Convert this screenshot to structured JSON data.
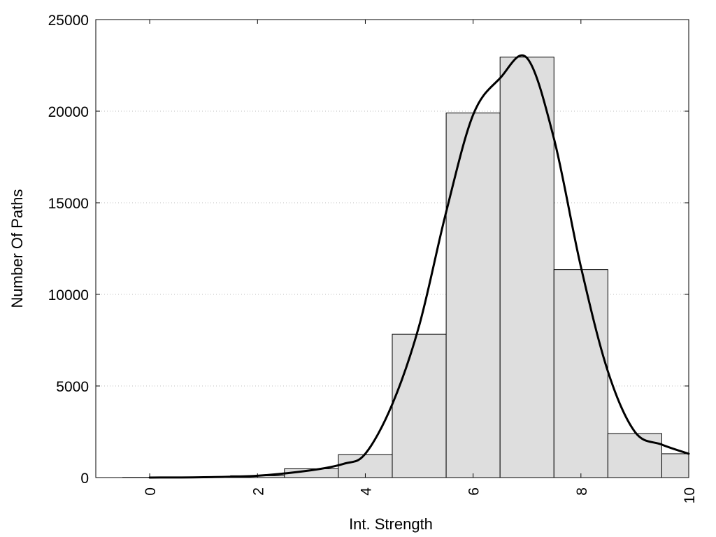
{
  "chart_data": {
    "type": "bar",
    "title": "",
    "xlabel": "Int. Strength",
    "ylabel": "Number Of Paths",
    "xlim": [
      -1,
      10
    ],
    "ylim": [
      0,
      25000
    ],
    "x_ticks": [
      "0",
      "2",
      "4",
      "6",
      "8",
      "10"
    ],
    "y_ticks": [
      "0",
      "5000",
      "10000",
      "15000",
      "20000",
      "25000"
    ],
    "grid": "horizontal dotted",
    "bar_fill": "#dedede",
    "bar_stroke": "#000000",
    "curve_color": "#000000",
    "bins": [
      {
        "x": 0,
        "value": 10
      },
      {
        "x": 1,
        "value": 30
      },
      {
        "x": 2,
        "value": 100
      },
      {
        "x": 3,
        "value": 480
      },
      {
        "x": 4,
        "value": 1250
      },
      {
        "x": 5,
        "value": 7820
      },
      {
        "x": 6,
        "value": 19900
      },
      {
        "x": 7,
        "value": 22950
      },
      {
        "x": 8,
        "value": 11350
      },
      {
        "x": 9,
        "value": 2400
      },
      {
        "x": 10,
        "value": 1300
      }
    ],
    "curve": [
      {
        "x": 0,
        "y": 0
      },
      {
        "x": 1,
        "y": 20
      },
      {
        "x": 2,
        "y": 100
      },
      {
        "x": 3,
        "y": 400
      },
      {
        "x": 3.6,
        "y": 750
      },
      {
        "x": 4,
        "y": 1300
      },
      {
        "x": 4.5,
        "y": 4000
      },
      {
        "x": 5,
        "y": 8300
      },
      {
        "x": 5.5,
        "y": 14500
      },
      {
        "x": 6,
        "y": 19800
      },
      {
        "x": 6.5,
        "y": 21800
      },
      {
        "x": 7,
        "y": 22900
      },
      {
        "x": 7.5,
        "y": 18500
      },
      {
        "x": 8,
        "y": 11500
      },
      {
        "x": 8.5,
        "y": 5800
      },
      {
        "x": 9,
        "y": 2500
      },
      {
        "x": 9.5,
        "y": 1800
      },
      {
        "x": 10,
        "y": 1300
      }
    ]
  }
}
